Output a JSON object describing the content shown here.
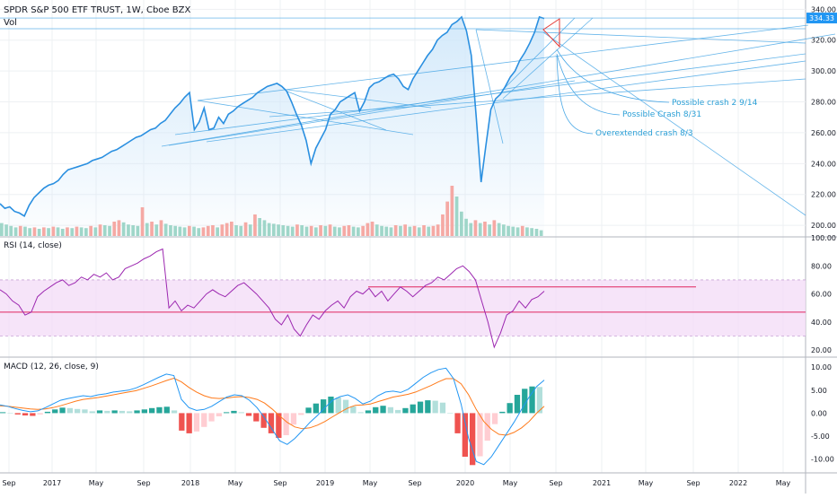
{
  "colors": {
    "price_line": "#2a8fe0",
    "fill": "#cfe7fa",
    "trend": "#4aa8e6",
    "vol_up": "#9fd6c9",
    "vol_down": "#f5a9a4",
    "rsi_line": "#9c27b0",
    "rsi_band": "#f4ddf8",
    "rsi_hline": "#e0245e",
    "macd_line": "#2196f3",
    "signal_line": "#ff7a1a",
    "hist_up": "#26a69a",
    "hist_down": "#ef5350",
    "grid": "#eef0f3",
    "red_marker": "#e53935"
  },
  "header": {
    "title": "SPDR S&P 500 ETF TRUST, 1W, Cboe BZX",
    "vol_label": "Vol"
  },
  "rsi": {
    "label": "RSI (14, close)",
    "ylim": [
      15,
      100
    ],
    "ticks": [
      "100.00",
      "80.00",
      "60.00",
      "40.00",
      "20.00"
    ],
    "band": [
      30,
      70
    ],
    "hlines": [
      47,
      65
    ],
    "values": [
      63,
      60,
      55,
      52,
      45,
      47,
      58,
      62,
      65,
      68,
      70,
      66,
      68,
      72,
      70,
      74,
      72,
      75,
      70,
      72,
      78,
      80,
      82,
      85,
      87,
      90,
      92,
      50,
      55,
      48,
      52,
      50,
      55,
      60,
      63,
      60,
      58,
      62,
      66,
      68,
      64,
      60,
      55,
      50,
      42,
      38,
      45,
      35,
      30,
      38,
      45,
      42,
      48,
      52,
      55,
      50,
      58,
      62,
      60,
      64,
      58,
      62,
      55,
      60,
      65,
      62,
      58,
      62,
      66,
      68,
      72,
      70,
      74,
      78,
      80,
      76,
      70,
      55,
      40,
      22,
      32,
      45,
      48,
      55,
      50,
      56,
      58,
      62
    ]
  },
  "macd": {
    "label": "MACD (12, 26, close, 9)",
    "ylim": [
      -13,
      12
    ],
    "ticks": [
      "10.00",
      "5.00",
      "0.00",
      "-5.00",
      "-10.00"
    ],
    "macd_values": [
      1.8,
      1.5,
      1.0,
      0.6,
      0.3,
      0.5,
      1.2,
      2.0,
      2.8,
      3.2,
      3.5,
      3.8,
      3.6,
      4.0,
      4.2,
      4.6,
      4.8,
      5.0,
      5.5,
      6.2,
      7.0,
      7.8,
      8.5,
      8.2,
      3.0,
      1.2,
      0.6,
      0.8,
      1.5,
      2.5,
      3.5,
      4.0,
      3.8,
      2.8,
      1.2,
      -1.0,
      -3.5,
      -6.0,
      -6.8,
      -5.5,
      -3.8,
      -2.0,
      -0.5,
      1.2,
      2.8,
      3.6,
      4.0,
      3.2,
      2.0,
      2.6,
      3.8,
      4.6,
      4.8,
      4.5,
      5.2,
      6.5,
      7.8,
      8.8,
      9.5,
      9.8,
      7.5,
      2.0,
      -5.5,
      -10.5,
      -11.2,
      -9.5,
      -7.0,
      -4.5,
      -2.0,
      0.8,
      3.5,
      5.8,
      7.2
    ],
    "signal_values": [
      1.6,
      1.5,
      1.3,
      1.1,
      0.9,
      0.8,
      0.9,
      1.2,
      1.6,
      2.1,
      2.6,
      3.0,
      3.2,
      3.4,
      3.7,
      4.0,
      4.3,
      4.6,
      4.9,
      5.4,
      5.9,
      6.5,
      7.1,
      7.6,
      6.8,
      5.6,
      4.6,
      3.8,
      3.3,
      3.2,
      3.3,
      3.5,
      3.6,
      3.4,
      3.0,
      2.2,
      0.9,
      -0.6,
      -2.0,
      -3.0,
      -3.4,
      -3.2,
      -2.6,
      -1.8,
      -0.8,
      0.2,
      1.1,
      1.7,
      1.8,
      2.0,
      2.5,
      3.0,
      3.5,
      3.8,
      4.1,
      4.6,
      5.3,
      6.0,
      6.8,
      7.5,
      7.5,
      6.4,
      4.0,
      0.8,
      -1.8,
      -3.5,
      -4.6,
      -4.8,
      -4.2,
      -3.2,
      -1.8,
      0.0,
      1.5
    ]
  },
  "chart_data": {
    "type": "line",
    "title": "SPDR S&P 500 ETF TRUST, 1W, Cboe BZX",
    "x_tick_labels": [
      "Sep",
      "2017",
      "May",
      "Sep",
      "2018",
      "May",
      "Sep",
      "2019",
      "May",
      "Sep",
      "2020",
      "May",
      "Sep",
      "2021",
      "May",
      "Sep",
      "2022",
      "May"
    ],
    "y_ticks": [
      "340.00",
      "320.00",
      "300.00",
      "280.00",
      "260.00",
      "240.00",
      "220.00",
      "200.00"
    ],
    "ylim": [
      196,
      346
    ],
    "last_price_label": "334.33",
    "last_price": 334.33,
    "series": [
      {
        "values": [
          214,
          211,
          212,
          209,
          208,
          206,
          213,
          218,
          221,
          224,
          226,
          227,
          229,
          233,
          236,
          237,
          238,
          239,
          240,
          242,
          243,
          244,
          246,
          248,
          249,
          251,
          253,
          255,
          257,
          258,
          260,
          262,
          263,
          266,
          268,
          272,
          276,
          279,
          283,
          286,
          262,
          267,
          276,
          262,
          263,
          270,
          266,
          272,
          274,
          277,
          279,
          281,
          283,
          286,
          288,
          290,
          291,
          292,
          290,
          287,
          280,
          272,
          265,
          255,
          240,
          250,
          256,
          262,
          272,
          275,
          280,
          282,
          284,
          286,
          274,
          280,
          289,
          292,
          293,
          295,
          297,
          298,
          295,
          290,
          288,
          295,
          300,
          305,
          310,
          314,
          320,
          323,
          325,
          330,
          332,
          335,
          326,
          310,
          270,
          228,
          252,
          275,
          282,
          285,
          290,
          296,
          300,
          307,
          312,
          318,
          325,
          335,
          334
        ]
      }
    ],
    "volume": {
      "values": [
        18,
        16,
        14,
        12,
        14,
        13,
        11,
        12,
        10,
        12,
        11,
        13,
        12,
        10,
        12,
        11,
        13,
        12,
        11,
        14,
        12,
        16,
        15,
        14,
        20,
        22,
        19,
        16,
        15,
        14,
        40,
        18,
        20,
        16,
        22,
        17,
        15,
        14,
        13,
        12,
        14,
        13,
        11,
        12,
        14,
        15,
        12,
        16,
        18,
        20,
        15,
        14,
        19,
        16,
        30,
        25,
        22,
        18,
        17,
        16,
        15,
        14,
        13,
        16,
        15,
        13,
        14,
        12,
        15,
        14,
        16,
        13,
        12,
        14,
        15,
        13,
        12,
        14,
        18,
        20,
        16,
        14,
        13,
        12,
        15,
        14,
        16,
        13,
        14,
        12,
        15,
        13,
        14,
        16,
        30,
        48,
        70,
        55,
        34,
        24,
        18,
        22,
        18,
        20,
        16,
        22,
        18,
        16,
        14,
        13,
        12,
        14,
        12,
        11,
        10,
        8
      ]
    },
    "annotations": [
      "Possible crash 2 9/14",
      "Possible Crash 8/31",
      "Overextended crash 8/3"
    ]
  }
}
